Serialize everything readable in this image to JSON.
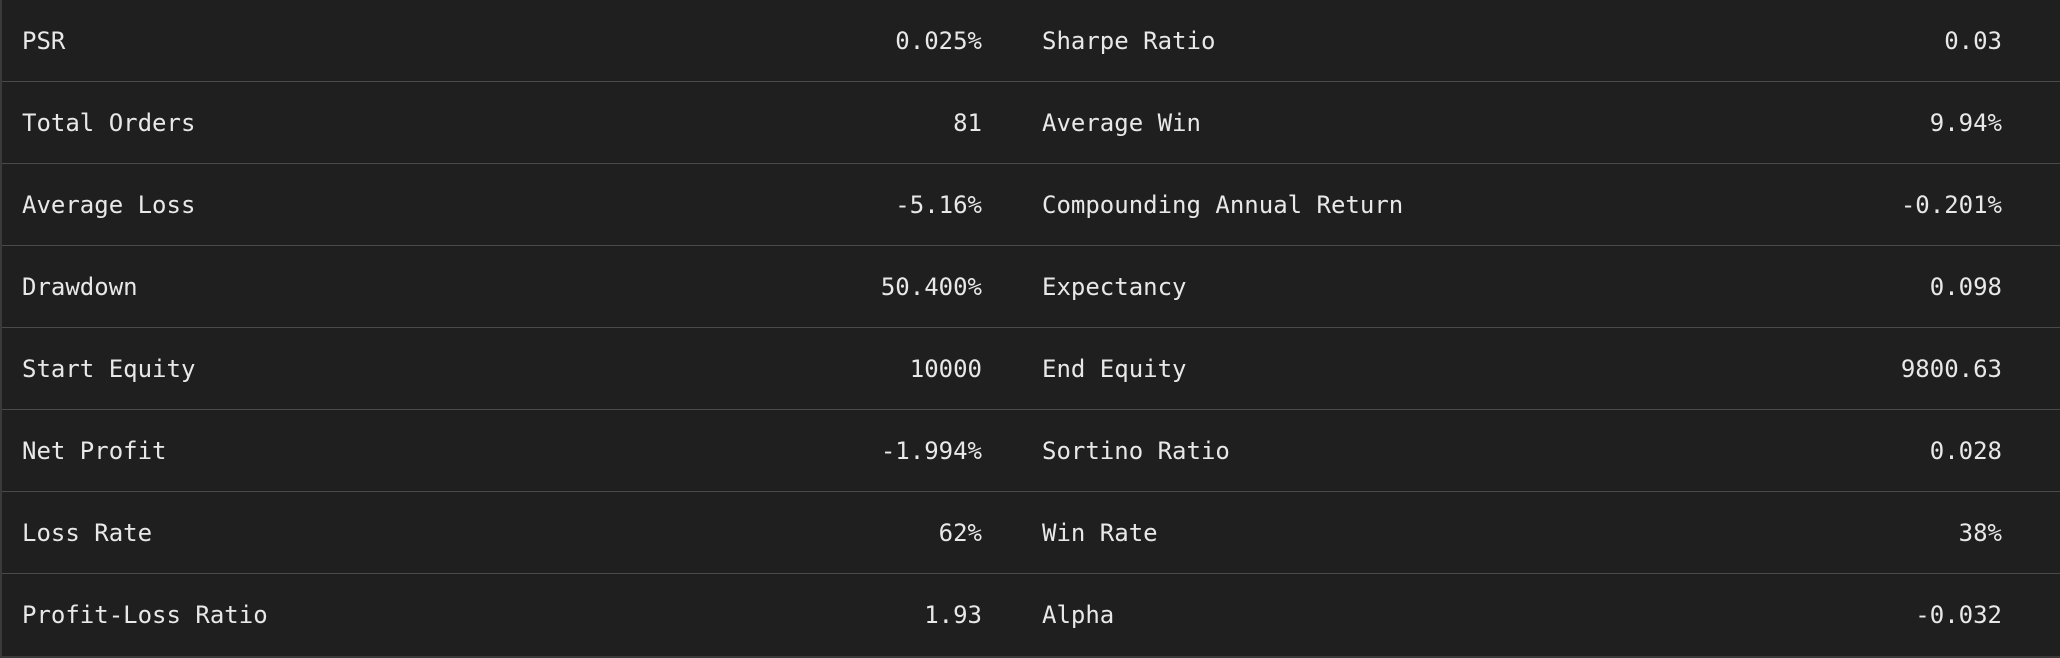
{
  "stats": [
    {
      "left_label": "PSR",
      "left_value": "0.025%",
      "right_label": "Sharpe Ratio",
      "right_value": "0.03"
    },
    {
      "left_label": "Total Orders",
      "left_value": "81",
      "right_label": "Average Win",
      "right_value": "9.94%"
    },
    {
      "left_label": "Average Loss",
      "left_value": "-5.16%",
      "right_label": "Compounding Annual Return",
      "right_value": "-0.201%"
    },
    {
      "left_label": "Drawdown",
      "left_value": "50.400%",
      "right_label": "Expectancy",
      "right_value": "0.098"
    },
    {
      "left_label": "Start Equity",
      "left_value": "10000",
      "right_label": "End Equity",
      "right_value": "9800.63"
    },
    {
      "left_label": "Net Profit",
      "left_value": "-1.994%",
      "right_label": "Sortino Ratio",
      "right_value": "0.028"
    },
    {
      "left_label": "Loss Rate",
      "left_value": "62%",
      "right_label": "Win Rate",
      "right_value": "38%"
    },
    {
      "left_label": "Profit-Loss Ratio",
      "left_value": "1.93",
      "right_label": "Alpha",
      "right_value": "-0.032"
    }
  ],
  "colors": {
    "background": "#1f1f1f",
    "text": "#e8e8e8",
    "divider": "#4a4a4a"
  }
}
